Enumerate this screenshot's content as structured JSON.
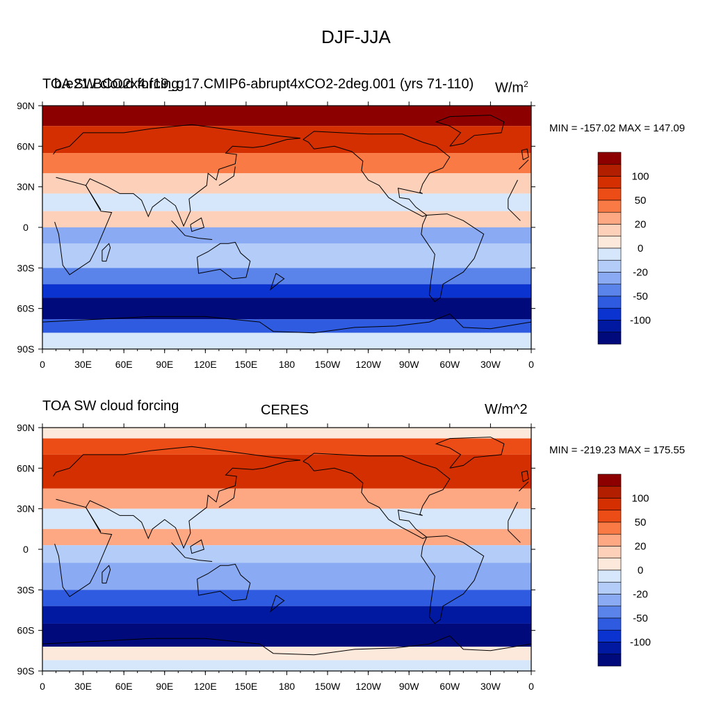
{
  "main_title": "DJF-JJA",
  "colors": {
    "levels": [
      "#8c0000",
      "#b21e00",
      "#d42f00",
      "#ec4d17",
      "#f97a45",
      "#fda783",
      "#fdd0b9",
      "#fde9dc",
      "#d6e7fb",
      "#b4ccf8",
      "#8aaaf3",
      "#5b84eb",
      "#2e5be0",
      "#0a33d0",
      "#0019a0",
      "#000a7a"
    ],
    "coast": "#000000",
    "missing": "#ffffff"
  },
  "colorbar_labels": [
    "100",
    "50",
    "20",
    "0",
    "-20",
    "-50",
    "-100"
  ],
  "panels": [
    {
      "left_title": "TOA SW cloud forcing",
      "center_title": "b.e21.BCO2x4.f19_g17.CMIP6-abrupt4xCO2-2deg.001 (yrs 71-110)",
      "right_title": "W/m",
      "right_title_sup": "2",
      "minmax": "MIN = -157.02 MAX = 147.09"
    },
    {
      "left_title": "TOA SW cloud forcing",
      "center_title": "CERES",
      "right_title": "W/m^2",
      "minmax": "MIN = -219.23 MAX = 175.55"
    }
  ],
  "chart_data": [
    {
      "type": "heatmap",
      "title": "DJF-JJA",
      "subtitle": "b.e21.BCO2x4.f19_g17.CMIP6-abrupt4xCO2-2deg.001 (yrs 71-110)",
      "variable": "TOA SW cloud forcing",
      "units": "W/m^2",
      "min": -157.02,
      "max": 147.09,
      "xlim": [
        0,
        360
      ],
      "ylim": [
        -90,
        90
      ],
      "x_ticks": [
        "0",
        "30E",
        "60E",
        "90E",
        "120E",
        "150E",
        "180",
        "150W",
        "120W",
        "90W",
        "60W",
        "30W",
        "0"
      ],
      "y_ticks": [
        "90N",
        "60N",
        "30N",
        "0",
        "30S",
        "60S",
        "90S"
      ],
      "colorbar_levels": [
        -100,
        -50,
        -20,
        0,
        20,
        50,
        100
      ],
      "zonal_bands": [
        {
          "lat": [
            75,
            90
          ],
          "value": 130
        },
        {
          "lat": [
            55,
            75
          ],
          "value": 85
        },
        {
          "lat": [
            40,
            55
          ],
          "value": 55
        },
        {
          "lat": [
            25,
            40
          ],
          "value": 20
        },
        {
          "lat": [
            12,
            25
          ],
          "value": -5
        },
        {
          "lat": [
            0,
            12
          ],
          "value": 15
        },
        {
          "lat": [
            -12,
            0
          ],
          "value": -30
        },
        {
          "lat": [
            -30,
            -12
          ],
          "value": -15
        },
        {
          "lat": [
            -42,
            -30
          ],
          "value": -40
        },
        {
          "lat": [
            -52,
            -42
          ],
          "value": -75
        },
        {
          "lat": [
            -68,
            -52
          ],
          "value": -115
        },
        {
          "lat": [
            -78,
            -68
          ],
          "value": -60
        },
        {
          "lat": [
            -90,
            -78
          ],
          "value": -5
        }
      ]
    },
    {
      "type": "heatmap",
      "title": "DJF-JJA",
      "subtitle": "CERES",
      "variable": "TOA SW cloud forcing",
      "units": "W/m^2",
      "min": -219.23,
      "max": 175.55,
      "xlim": [
        0,
        360
      ],
      "ylim": [
        -90,
        90
      ],
      "x_ticks": [
        "0",
        "30E",
        "60E",
        "90E",
        "120E",
        "150E",
        "180",
        "150W",
        "120W",
        "90W",
        "60W",
        "30W",
        "0"
      ],
      "y_ticks": [
        "90N",
        "60N",
        "30N",
        "0",
        "30S",
        "60S",
        "90S"
      ],
      "colorbar_levels": [
        -100,
        -50,
        -20,
        0,
        20,
        50,
        100
      ],
      "zonal_bands": [
        {
          "lat": [
            82,
            90
          ],
          "value": 5
        },
        {
          "lat": [
            70,
            82
          ],
          "value": 70
        },
        {
          "lat": [
            45,
            70
          ],
          "value": 85
        },
        {
          "lat": [
            30,
            45
          ],
          "value": 30
        },
        {
          "lat": [
            15,
            30
          ],
          "value": -5
        },
        {
          "lat": [
            3,
            15
          ],
          "value": 35
        },
        {
          "lat": [
            -10,
            3
          ],
          "value": -15
        },
        {
          "lat": [
            -30,
            -10
          ],
          "value": -20
        },
        {
          "lat": [
            -42,
            -30
          ],
          "value": -50
        },
        {
          "lat": [
            -55,
            -42
          ],
          "value": -90
        },
        {
          "lat": [
            -72,
            -55
          ],
          "value": -130
        },
        {
          "lat": [
            -82,
            -72
          ],
          "value": 10
        },
        {
          "lat": [
            -90,
            -82
          ],
          "value": 0
        }
      ]
    }
  ]
}
